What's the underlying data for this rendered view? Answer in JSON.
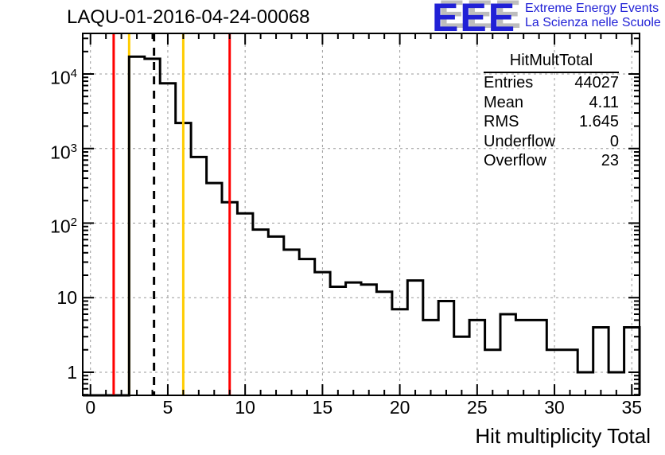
{
  "title": "LAQU-01-2016-04-24-00068",
  "logo": {
    "acronym": "EEE",
    "line1": "Extreme Energy Events",
    "line2": "La Scienza nelle Scuole",
    "color": "#2121d6",
    "shadow_color": "#bdbdbd"
  },
  "stats": {
    "title": "HitMultTotal",
    "rows": [
      {
        "label": "Entries",
        "value": "44027"
      },
      {
        "label": "Mean",
        "value": "4.11"
      },
      {
        "label": "RMS",
        "value": "1.645"
      },
      {
        "label": "Underflow",
        "value": "0"
      },
      {
        "label": "Overflow",
        "value": "23"
      }
    ]
  },
  "chart_data": {
    "type": "bar",
    "title": "LAQU-01-2016-04-24-00068",
    "xlabel": "Hit multiplicity Total",
    "ylabel": "",
    "yscale": "log",
    "xlim": [
      -0.5,
      35.5
    ],
    "ylim": [
      0.49,
      35000
    ],
    "bin_width": 1,
    "bin_centers": [
      0,
      1,
      2,
      3,
      4,
      5,
      6,
      7,
      8,
      9,
      10,
      11,
      12,
      13,
      14,
      15,
      16,
      17,
      18,
      19,
      20,
      21,
      22,
      23,
      24,
      25,
      26,
      27,
      28,
      29,
      30,
      31,
      32,
      33,
      34,
      35
    ],
    "values": [
      0,
      0,
      0,
      17100,
      16000,
      7500,
      2200,
      770,
      345,
      190,
      135,
      82,
      66,
      44,
      33,
      22,
      14,
      16,
      15,
      12,
      7,
      17,
      5,
      9,
      3,
      5,
      2,
      6,
      5,
      5,
      2,
      2,
      1,
      4,
      1,
      4
    ],
    "x_ticks": [
      0,
      5,
      10,
      15,
      20,
      25,
      30,
      35
    ],
    "x_tick_labels": [
      "0",
      "5",
      "10",
      "15",
      "20",
      "25",
      "30",
      "35"
    ],
    "y_ticks": [
      1,
      10,
      100,
      1000,
      10000
    ],
    "y_tick_labels": [
      "1",
      "10",
      "10^2",
      "10^3",
      "10^4"
    ],
    "grid": {
      "color": "#999999",
      "style": "dashed",
      "on": "major-ticks-both-axes"
    },
    "line_color": "#000000",
    "frame_color": "#000000",
    "marker_lines": [
      {
        "x": 1.5,
        "color": "#ff0000",
        "style": "solid",
        "layer": "above"
      },
      {
        "x": 2.5,
        "color": "#ffcc00",
        "style": "solid",
        "layer": "below"
      },
      {
        "x": 4.11,
        "color": "#000000",
        "style": "dashed",
        "layer": "above"
      },
      {
        "x": 6,
        "color": "#ffcc00",
        "style": "solid",
        "layer": "above"
      },
      {
        "x": 9,
        "color": "#ff0000",
        "style": "solid",
        "layer": "above"
      }
    ]
  }
}
